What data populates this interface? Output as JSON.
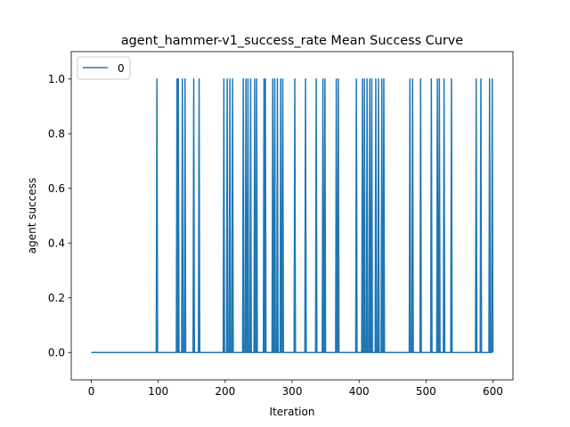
{
  "chart_data": {
    "type": "line",
    "title": "agent_hammer-v1_success_rate Mean Success Curve",
    "xlabel": "Iteration",
    "ylabel": "agent success",
    "xlim": [
      -30,
      630
    ],
    "ylim": [
      -0.1,
      1.1
    ],
    "xticks": [
      0,
      100,
      200,
      300,
      400,
      500,
      600
    ],
    "yticks": [
      0.0,
      0.2,
      0.4,
      0.6,
      0.8,
      1.0
    ],
    "xtick_labels": [
      "0",
      "100",
      "200",
      "300",
      "400",
      "500",
      "600"
    ],
    "ytick_labels": [
      "0.0",
      "0.2",
      "0.4",
      "0.6",
      "0.8",
      "1.0"
    ],
    "grid": false,
    "legend_position": "upper-left",
    "colors": {
      "series": "#1f77b4",
      "axes": "#000000",
      "background": "#ffffff"
    },
    "series": [
      {
        "name": "0",
        "length": 601,
        "success_iterations": [
          98,
          128,
          130,
          136,
          140,
          153,
          161,
          198,
          203,
          207,
          211,
          227,
          231,
          234,
          238,
          244,
          247,
          258,
          260,
          271,
          274,
          278,
          283,
          286,
          304,
          320,
          336,
          346,
          349,
          366,
          369,
          396,
          405,
          408,
          412,
          416,
          419,
          425,
          429,
          434,
          437,
          476,
          480,
          492,
          508,
          517,
          520,
          527,
          538,
          575,
          582,
          595,
          599
        ]
      }
    ]
  }
}
